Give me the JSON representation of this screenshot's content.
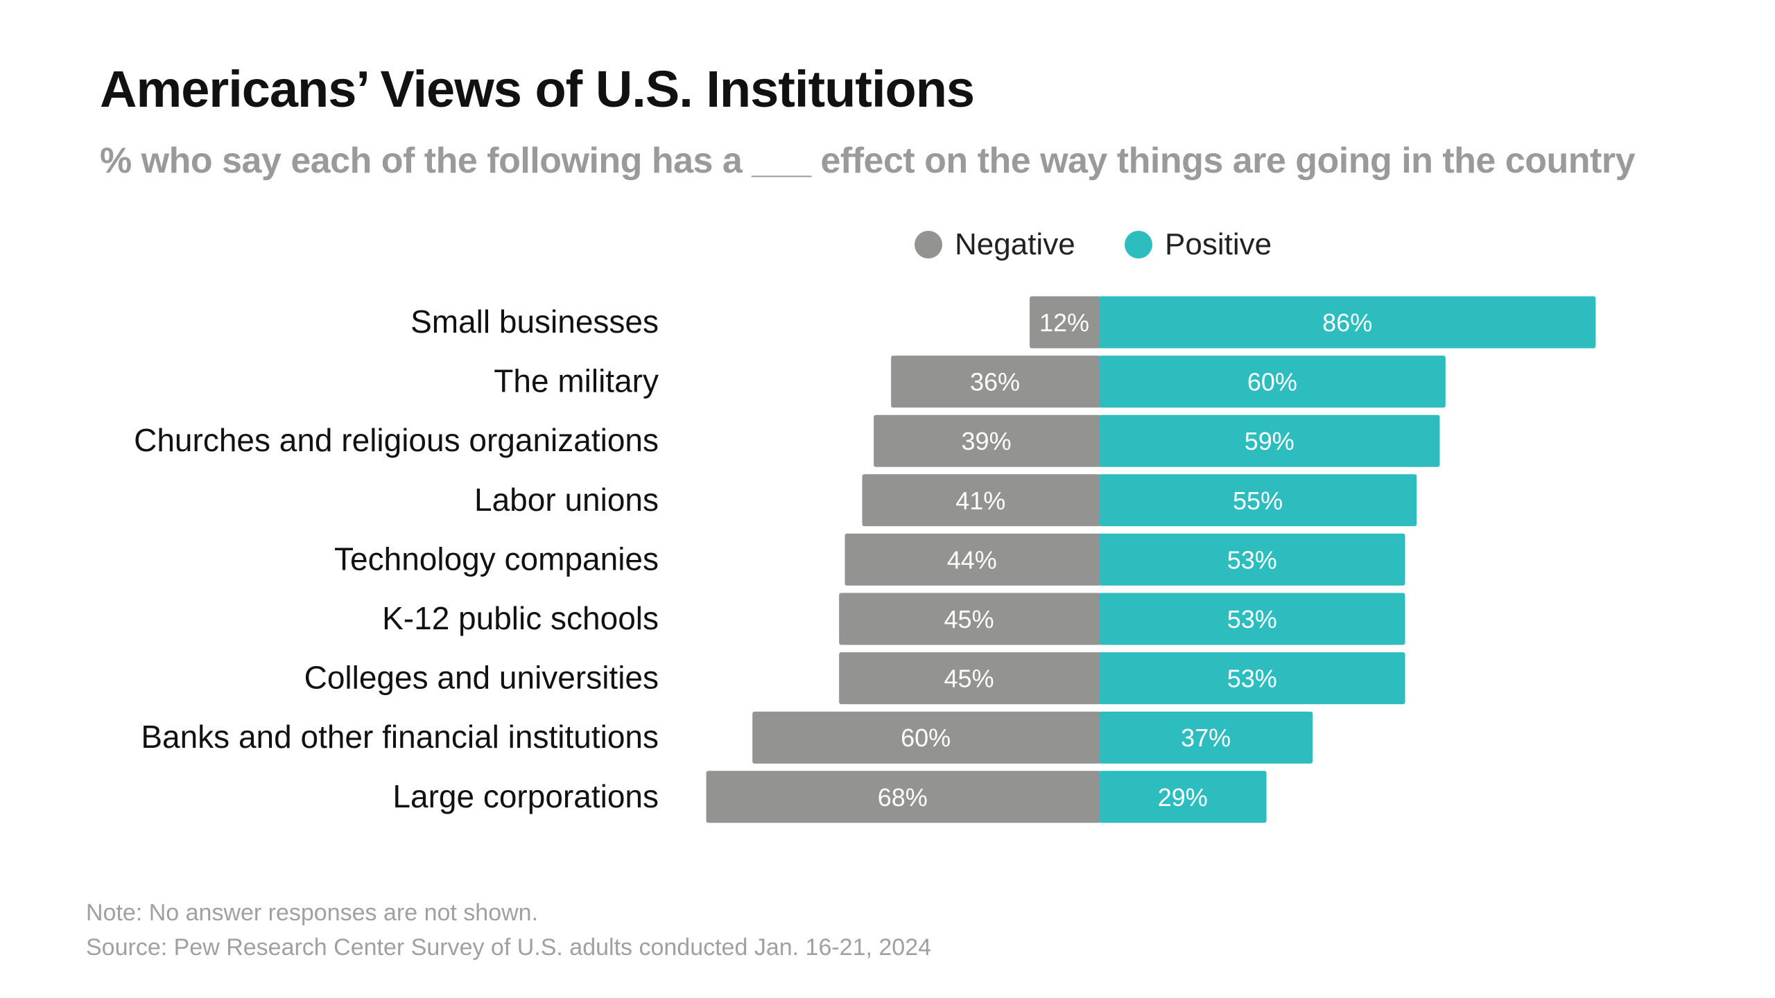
{
  "title": "Americans’ Views of U.S. Institutions",
  "subtitle": "% who say each of the following has a ___ effect on the way things are going in the country",
  "notes": [
    "Note: No answer responses are not shown.",
    "Source: Pew Research Center Survey of U.S. adults conducted Jan. 16-21, 2024"
  ],
  "colors": {
    "negative": "#939391",
    "positive": "#2ebdbe"
  },
  "chart_data": {
    "type": "bar",
    "orientation": "horizontal-diverging",
    "legend_placement": "top",
    "grid": false,
    "categories": [
      "Small businesses",
      "The military",
      "Churches and religious organizations",
      "Labor unions",
      "Technology companies",
      "K-12 public schools",
      "Colleges and universities",
      "Banks and other financial institutions",
      "Large corporations"
    ],
    "series": [
      {
        "name": "Negative",
        "values": [
          12,
          36,
          39,
          41,
          44,
          45,
          45,
          60,
          68
        ]
      },
      {
        "name": "Positive",
        "values": [
          86,
          60,
          59,
          55,
          53,
          53,
          53,
          37,
          29
        ]
      }
    ]
  }
}
